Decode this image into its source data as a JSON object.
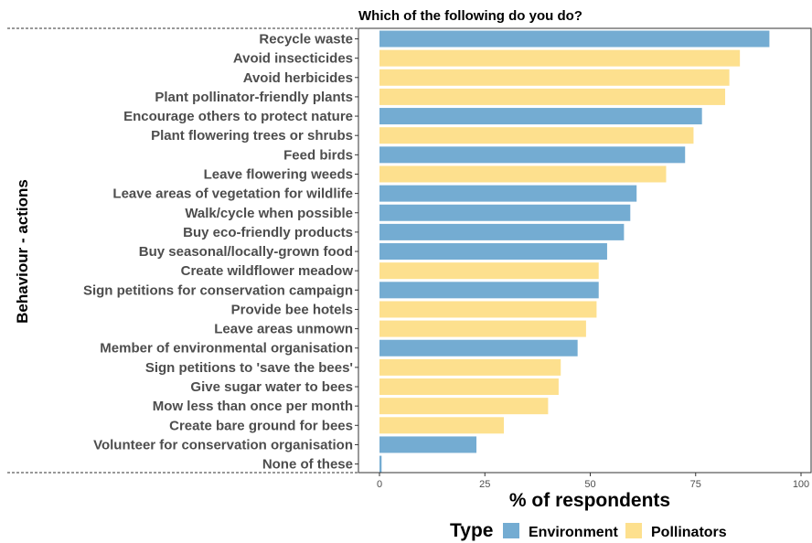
{
  "chart_data": {
    "type": "bar",
    "orientation": "horizontal",
    "title": "Which of the following do you do?",
    "xlabel": "% of respondents",
    "ylabel": "Behaviour - actions",
    "xlim": [
      0,
      100
    ],
    "xticks": [
      0,
      25,
      50,
      75,
      100
    ],
    "legend": {
      "title": "Type",
      "position": "bottom",
      "entries": [
        {
          "name": "Environment",
          "color": "#74acd2"
        },
        {
          "name": "Pollinators",
          "color": "#fde08e"
        }
      ]
    },
    "bars": [
      {
        "label": "Recycle waste",
        "value": 92.5,
        "type": "Environment"
      },
      {
        "label": "Avoid insecticides",
        "value": 85.5,
        "type": "Pollinators"
      },
      {
        "label": "Avoid herbicides",
        "value": 83,
        "type": "Pollinators"
      },
      {
        "label": "Plant pollinator-friendly plants",
        "value": 82,
        "type": "Pollinators"
      },
      {
        "label": "Encourage others to protect nature",
        "value": 76.5,
        "type": "Environment"
      },
      {
        "label": "Plant flowering trees or shrubs",
        "value": 74.5,
        "type": "Pollinators"
      },
      {
        "label": "Feed birds",
        "value": 72.5,
        "type": "Environment"
      },
      {
        "label": "Leave flowering weeds",
        "value": 68,
        "type": "Pollinators"
      },
      {
        "label": "Leave areas of vegetation for wildlife",
        "value": 61,
        "type": "Environment"
      },
      {
        "label": "Walk/cycle when possible",
        "value": 59.5,
        "type": "Environment"
      },
      {
        "label": "Buy eco-friendly products",
        "value": 58,
        "type": "Environment"
      },
      {
        "label": "Buy seasonal/locally-grown food",
        "value": 54,
        "type": "Environment"
      },
      {
        "label": "Create wildflower meadow",
        "value": 52,
        "type": "Pollinators"
      },
      {
        "label": "Sign petitions for conservation campaign",
        "value": 52,
        "type": "Environment"
      },
      {
        "label": "Provide bee hotels",
        "value": 51.5,
        "type": "Pollinators"
      },
      {
        "label": "Leave areas unmown",
        "value": 49,
        "type": "Pollinators"
      },
      {
        "label": "Member of environmental organisation",
        "value": 47,
        "type": "Environment"
      },
      {
        "label": "Sign petitions to 'save the bees'",
        "value": 43,
        "type": "Pollinators"
      },
      {
        "label": "Give sugar water to bees",
        "value": 42.5,
        "type": "Pollinators"
      },
      {
        "label": "Mow less than once per month",
        "value": 40,
        "type": "Pollinators"
      },
      {
        "label": "Create bare ground for bees",
        "value": 29.5,
        "type": "Pollinators"
      },
      {
        "label": "Volunteer for conservation organisation",
        "value": 23,
        "type": "Environment"
      },
      {
        "label": "None of these",
        "value": 0.5,
        "type": "Environment"
      }
    ],
    "grid": false
  }
}
